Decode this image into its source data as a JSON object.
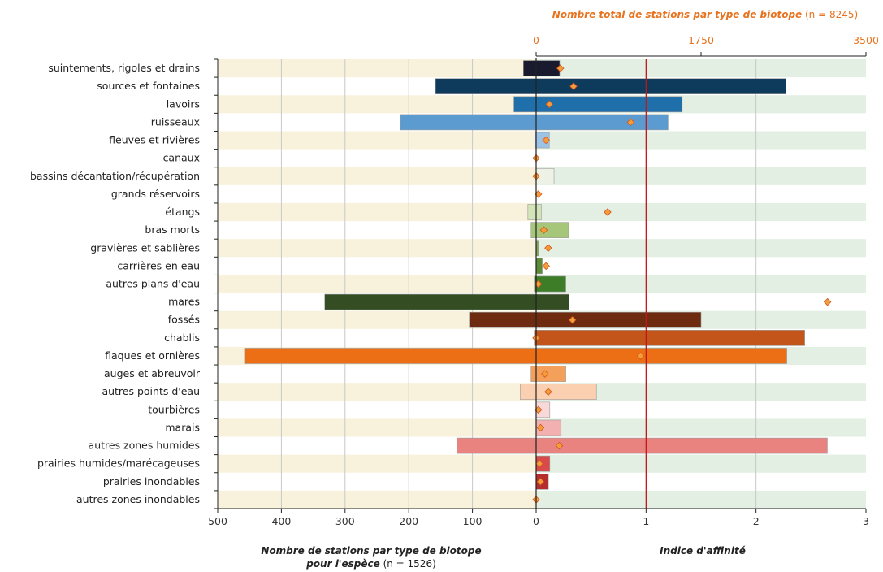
{
  "chart_data": {
    "type": "bar",
    "categories": [
      "suintements, rigoles et drains",
      "sources et fontaines",
      "lavoirs",
      "ruisseaux",
      "fleuves et rivières",
      "canaux",
      "bassins décantation/récupération",
      "grands réservoirs",
      "étangs",
      "bras morts",
      "gravières et sablières",
      "carrières en eau",
      "autres plans d'eau",
      "mares",
      "fossés",
      "chablis",
      "flaques et ornières",
      "auges et abreuvoir",
      "autres points d'eau",
      "tourbières",
      "marais",
      "autres zones humides",
      "prairies humides/marécageuses",
      "prairies inondables",
      "autres zones inondables"
    ],
    "colors": [
      "#1a1a2e",
      "#0e3a5c",
      "#1f6faa",
      "#5b9bd0",
      "#9cc3e6",
      "#9cc3e6",
      "#eef2e6",
      "#eef2e6",
      "#d3e4b8",
      "#a6c77a",
      "#7ea858",
      "#5b8c35",
      "#3d7d28",
      "#344d22",
      "#6e2b10",
      "#c4551a",
      "#ec6f15",
      "#f5a05a",
      "#fbd0b0",
      "#f8d8d8",
      "#f2b0b0",
      "#e8837f",
      "#d94a4a",
      "#b52e2e",
      "#8a1f1f"
    ],
    "series": [
      {
        "name": "Nombre de stations par type de biotope pour l'espèce",
        "axis": "bottom-left",
        "values": [
          20,
          158,
          35,
          213,
          2,
          0,
          0,
          0,
          13,
          8,
          0,
          0,
          3,
          332,
          105,
          3,
          458,
          8,
          25,
          0,
          0,
          124,
          0,
          0,
          0
        ]
      },
      {
        "name": "Nombre total de stations par type de biotope",
        "axis": "top",
        "values": [
          250,
          2650,
          1550,
          1400,
          140,
          0,
          190,
          0,
          55,
          345,
          25,
          65,
          315,
          350,
          1750,
          2850,
          2660,
          315,
          640,
          145,
          265,
          3090,
          145,
          130,
          0
        ]
      },
      {
        "name": "Indice d'affinité",
        "axis": "bottom-right",
        "values": [
          0.22,
          0.34,
          0.12,
          0.86,
          0.09,
          0.0,
          0.0,
          0.02,
          0.65,
          0.07,
          0.11,
          0.09,
          0.02,
          2.65,
          0.33,
          0.0,
          0.95,
          0.08,
          0.11,
          0.02,
          0.04,
          0.21,
          0.03,
          0.04,
          0.0
        ]
      }
    ],
    "xaxis_left": {
      "ticks": [
        "500",
        "400",
        "300",
        "200",
        "100",
        "0"
      ],
      "lim": [
        500,
        0
      ]
    },
    "xaxis_right": {
      "ticks": [
        "1",
        "2",
        "3"
      ],
      "lim": [
        0,
        3
      ],
      "reference_line": 1
    },
    "xaxis_top": {
      "ticks": [
        "0",
        "1750",
        "3500"
      ],
      "lim": [
        0,
        3500
      ]
    },
    "xlabel_left": {
      "italic": "Nombre de stations par type de biotope",
      "line2_italic": "pour l'espèce",
      "line2_plain": " (n = 1526)"
    },
    "xlabel_right": "Indice d'affinité",
    "top_title": {
      "italic": "Nombre total de stations par type de biotope",
      "plain": " (n = 8245)"
    },
    "band_colors": {
      "left": "#f8f2dc",
      "right": "#e3efe2"
    },
    "marker_color": "#f39c3c",
    "reference_color": "#c0181a",
    "grid": true
  }
}
